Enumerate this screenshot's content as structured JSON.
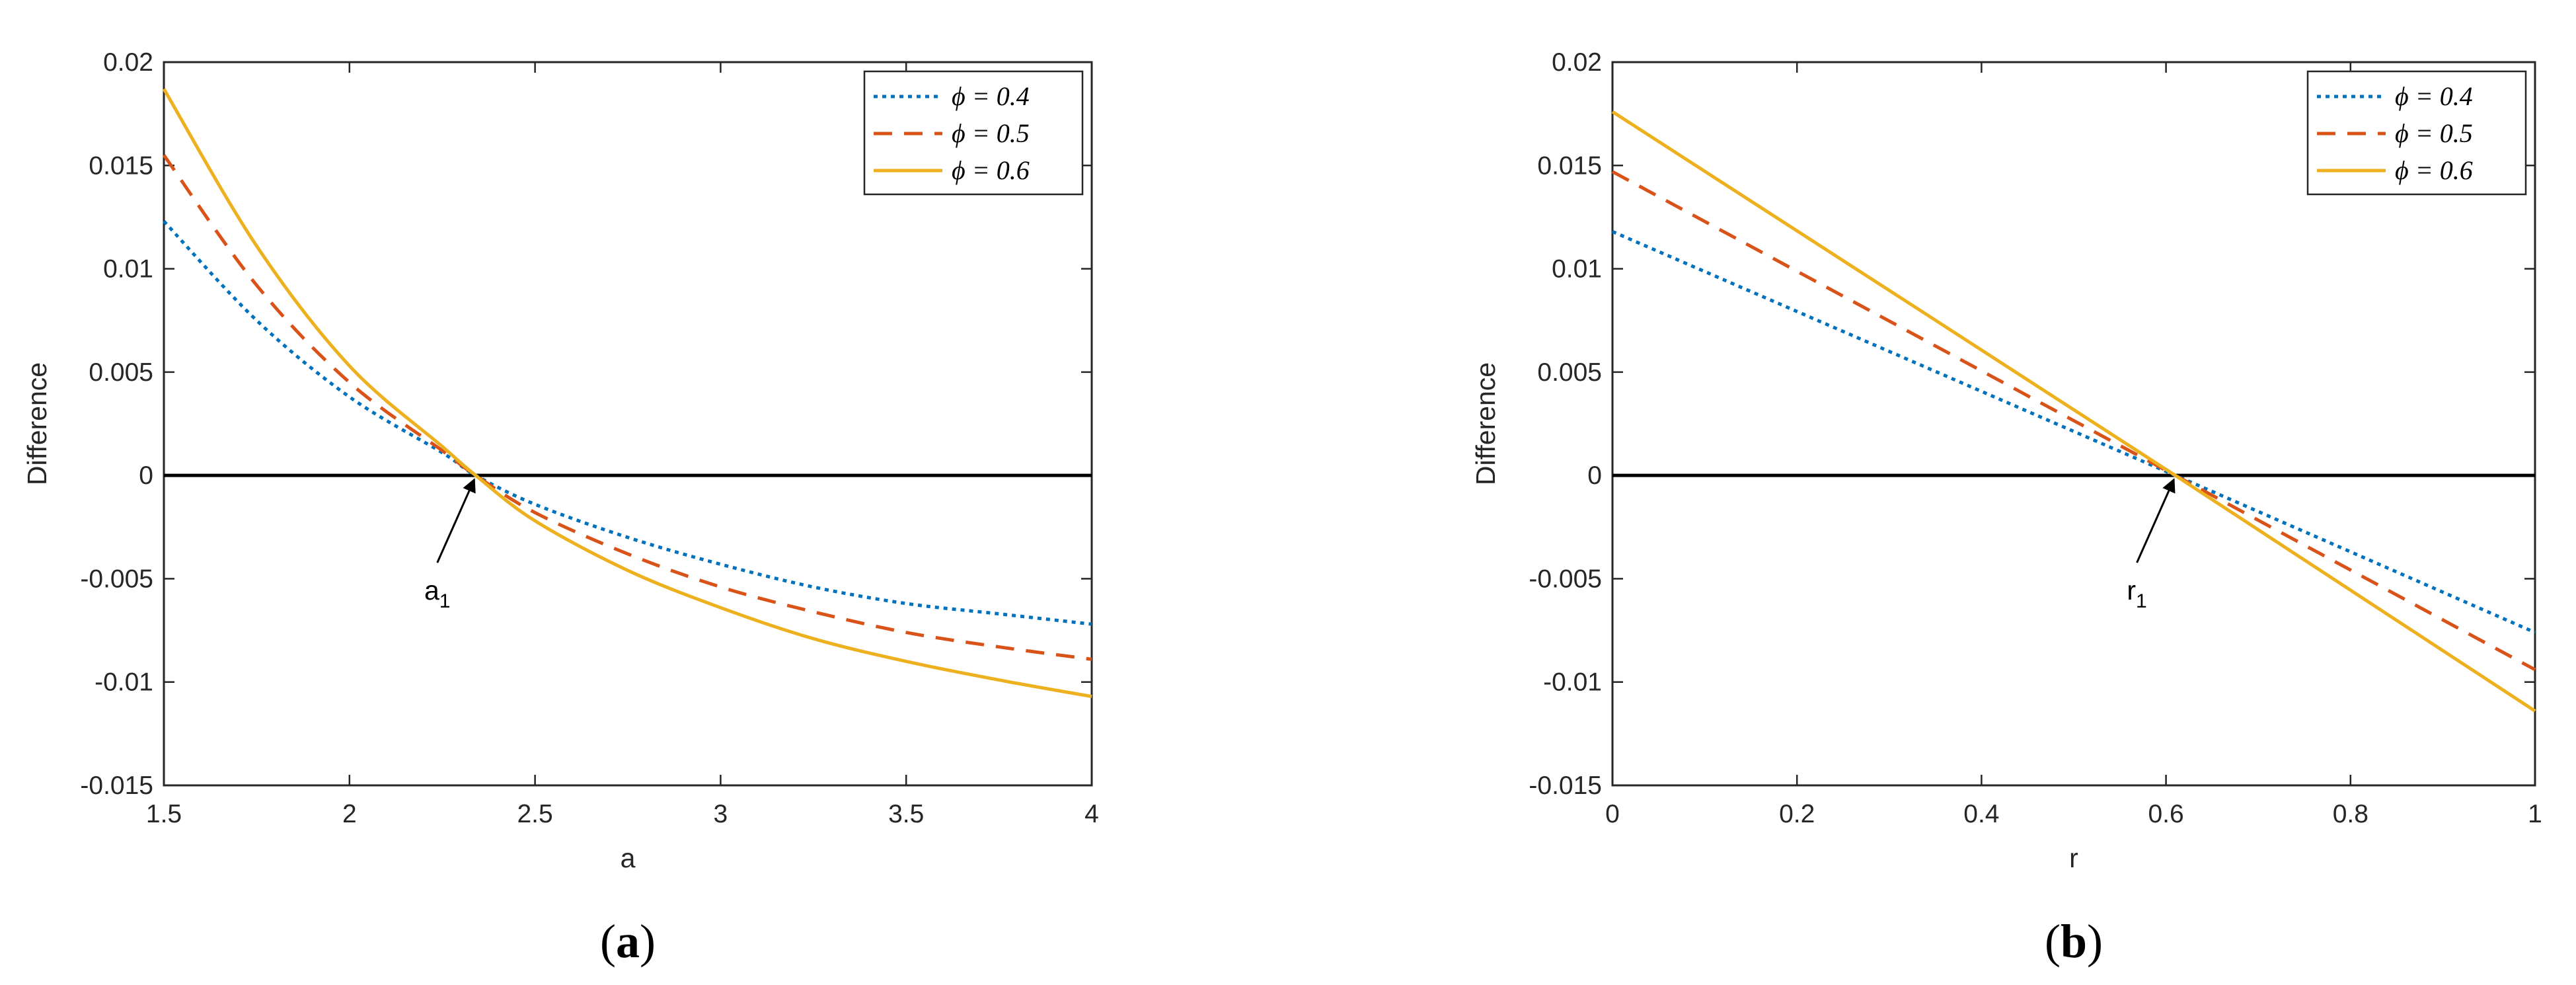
{
  "chart_data": [
    {
      "type": "line",
      "panel": "a",
      "caption_open": "(",
      "caption_letter": "a",
      "caption_close": ")",
      "xlabel": "a",
      "ylabel": "Difference",
      "xlim": [
        1.5,
        4
      ],
      "ylim": [
        -0.015,
        0.02
      ],
      "xticks": [
        1.5,
        2,
        2.5,
        3,
        3.5,
        4
      ],
      "xtick_labels": [
        "1.5",
        "2",
        "2.5",
        "3",
        "3.5",
        "4"
      ],
      "yticks": [
        -0.015,
        -0.01,
        -0.005,
        0,
        0.005,
        0.01,
        0.015,
        0.02
      ],
      "ytick_labels": [
        "-0.015",
        "-0.01",
        "-0.005",
        "0",
        "0.005",
        "0.01",
        "0.015",
        "0.02"
      ],
      "legend_position": "top-right",
      "zero_line": true,
      "annotation": {
        "text": "a",
        "subscript": "1",
        "x": 2.34,
        "y": 0
      },
      "series": [
        {
          "name": "ϕ = 0.4",
          "color": "#0072BD",
          "style": "dotted",
          "x": [
            1.5,
            1.75,
            2.0,
            2.25,
            2.34,
            2.5,
            2.75,
            3.0,
            3.25,
            3.5,
            3.75,
            4.0
          ],
          "y": [
            0.0123,
            0.0075,
            0.0038,
            0.0011,
            0.0,
            -0.0014,
            -0.003,
            -0.0043,
            -0.0054,
            -0.0062,
            -0.0067,
            -0.0072
          ]
        },
        {
          "name": "ϕ = 0.5",
          "color": "#D95319",
          "style": "dashed",
          "x": [
            1.5,
            1.75,
            2.0,
            2.25,
            2.34,
            2.5,
            2.75,
            3.0,
            3.25,
            3.5,
            3.75,
            4.0
          ],
          "y": [
            0.0155,
            0.0092,
            0.0045,
            0.0012,
            0.0,
            -0.0018,
            -0.0038,
            -0.0054,
            -0.0066,
            -0.0076,
            -0.0083,
            -0.0089
          ]
        },
        {
          "name": "ϕ = 0.6",
          "color": "#EDB120",
          "style": "solid",
          "x": [
            1.5,
            1.75,
            2.0,
            2.25,
            2.34,
            2.5,
            2.75,
            3.0,
            3.25,
            3.5,
            3.75,
            4.0
          ],
          "y": [
            0.0187,
            0.0111,
            0.0053,
            0.0014,
            0.0,
            -0.0022,
            -0.0046,
            -0.0064,
            -0.0079,
            -0.009,
            -0.0099,
            -0.0107
          ]
        }
      ]
    },
    {
      "type": "line",
      "panel": "b",
      "caption_open": "(",
      "caption_letter": "b",
      "caption_close": ")",
      "xlabel": "r",
      "ylabel": "Difference",
      "xlim": [
        0,
        1
      ],
      "ylim": [
        -0.015,
        0.02
      ],
      "xticks": [
        0,
        0.2,
        0.4,
        0.6,
        0.8,
        1
      ],
      "xtick_labels": [
        "0",
        "0.2",
        "0.4",
        "0.6",
        "0.8",
        "1"
      ],
      "yticks": [
        -0.015,
        -0.01,
        -0.005,
        0,
        0.005,
        0.01,
        0.015,
        0.02
      ],
      "ytick_labels": [
        "-0.015",
        "-0.01",
        "-0.005",
        "0",
        "0.005",
        "0.01",
        "0.015",
        "0.02"
      ],
      "legend_position": "top-right",
      "zero_line": true,
      "annotation": {
        "text": "r",
        "subscript": "1",
        "x": 0.61,
        "y": 0
      },
      "series": [
        {
          "name": "ϕ = 0.4",
          "color": "#0072BD",
          "style": "dotted",
          "x": [
            0,
            0.61,
            1
          ],
          "y": [
            0.0118,
            0.0,
            -0.0076
          ]
        },
        {
          "name": "ϕ = 0.5",
          "color": "#D95319",
          "style": "dashed",
          "x": [
            0,
            0.61,
            1
          ],
          "y": [
            0.0147,
            0.0,
            -0.0094
          ]
        },
        {
          "name": "ϕ = 0.6",
          "color": "#EDB120",
          "style": "solid",
          "x": [
            0,
            0.61,
            1
          ],
          "y": [
            0.0176,
            0.0,
            -0.0114
          ]
        }
      ]
    }
  ]
}
